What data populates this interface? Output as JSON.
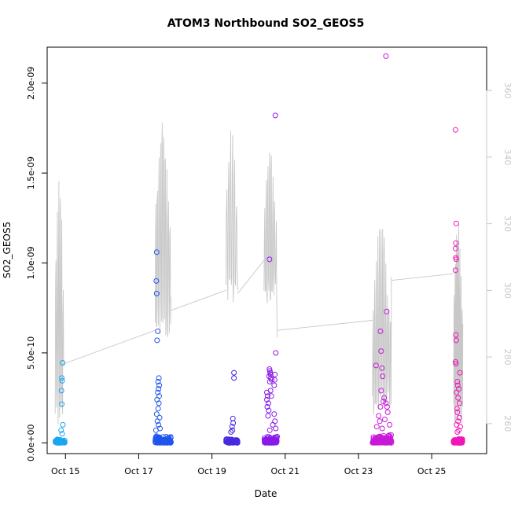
{
  "chart_data": {
    "type": "scatter",
    "title": "ATOM3 Northbound SO2_GEOS5",
    "xlabel": "Date",
    "ylabel": "SO2_GEOS5",
    "xlim": [
      14.5,
      26.5
    ],
    "ylim": [
      -6e-11,
      2.2e-09
    ],
    "y2lim": [
      251,
      373
    ],
    "grid": false,
    "x_ticks": [
      {
        "value": 15,
        "label": "Oct 15"
      },
      {
        "value": 17,
        "label": "Oct 17"
      },
      {
        "value": 19,
        "label": "Oct 19"
      },
      {
        "value": 21,
        "label": "Oct 21"
      },
      {
        "value": 23,
        "label": "Oct 23"
      },
      {
        "value": 25,
        "label": "Oct 25"
      }
    ],
    "y_ticks": [
      {
        "value": 0,
        "label": "0.0e+00"
      },
      {
        "value": 5e-10,
        "label": "5.0e-10"
      },
      {
        "value": 1e-09,
        "label": "1.0e-09"
      },
      {
        "value": 1.5e-09,
        "label": "1.5e-09"
      },
      {
        "value": 2e-09,
        "label": "2.0e-09"
      }
    ],
    "y2_ticks": [
      {
        "value": 260,
        "label": "260"
      },
      {
        "value": 280,
        "label": "280"
      },
      {
        "value": 300,
        "label": "300"
      },
      {
        "value": 320,
        "label": "320"
      },
      {
        "value": 340,
        "label": "340"
      },
      {
        "value": 360,
        "label": "360"
      }
    ],
    "colors": {
      "secondary_line": "#c8c8c8",
      "frame": "#000000",
      "right_axis": "#c8c8c8"
    },
    "flights": [
      {
        "color": "#1aa6f0",
        "x_start": 14.72,
        "x_end": 14.98,
        "base_max": 2.5e-11,
        "base_n": 70,
        "outliers": [
          [
            14.92,
            4.45e-10
          ],
          [
            14.9,
            3.6e-10
          ],
          [
            14.91,
            3.45e-10
          ],
          [
            14.89,
            2.9e-10
          ],
          [
            14.9,
            2.15e-10
          ],
          [
            14.93,
            1e-10
          ],
          [
            14.88,
            7e-11
          ],
          [
            14.91,
            5e-11
          ]
        ]
      },
      {
        "color": "#2255ee",
        "x_start": 17.45,
        "x_end": 17.88,
        "base_max": 4e-11,
        "base_n": 120,
        "outliers": [
          [
            17.49,
            1.06e-09
          ],
          [
            17.48,
            9e-10
          ],
          [
            17.49,
            8.3e-10
          ],
          [
            17.52,
            6.2e-10
          ],
          [
            17.5,
            5.7e-10
          ],
          [
            17.55,
            3.6e-10
          ],
          [
            17.53,
            3.4e-10
          ],
          [
            17.56,
            3.2e-10
          ],
          [
            17.54,
            3e-10
          ],
          [
            17.52,
            2.8e-10
          ],
          [
            17.56,
            2.6e-10
          ],
          [
            17.5,
            2.4e-10
          ],
          [
            17.55,
            2.2e-10
          ],
          [
            17.53,
            1.9e-10
          ],
          [
            17.49,
            1.6e-10
          ],
          [
            17.57,
            1.4e-10
          ],
          [
            17.51,
            1.2e-10
          ],
          [
            17.54,
            1e-10
          ],
          [
            17.58,
            8e-11
          ],
          [
            17.47,
            7e-11
          ]
        ]
      },
      {
        "color": "#4a2be0",
        "x_start": 19.38,
        "x_end": 19.7,
        "base_max": 2.5e-11,
        "base_n": 80,
        "outliers": [
          [
            19.6,
            3.9e-10
          ],
          [
            19.6,
            3.6e-10
          ],
          [
            19.57,
            1.35e-10
          ],
          [
            19.58,
            1.1e-10
          ],
          [
            19.55,
            9e-11
          ],
          [
            19.56,
            7e-11
          ],
          [
            19.52,
            6e-11
          ]
        ]
      },
      {
        "color": "#8a1ae8",
        "x_start": 20.42,
        "x_end": 20.78,
        "base_max": 4e-11,
        "base_n": 110,
        "outliers": [
          [
            20.73,
            1.82e-09
          ],
          [
            20.57,
            1.02e-09
          ],
          [
            20.74,
            5e-10
          ],
          [
            20.57,
            4.1e-10
          ],
          [
            20.58,
            4e-10
          ],
          [
            20.59,
            3.9e-10
          ],
          [
            20.6,
            3.8e-10
          ],
          [
            20.56,
            3.7e-10
          ],
          [
            20.61,
            3.6e-10
          ],
          [
            20.63,
            3.5e-10
          ],
          [
            20.58,
            3.4e-10
          ],
          [
            20.72,
            3.8e-10
          ],
          [
            20.71,
            3.5e-10
          ],
          [
            20.7,
            3.2e-10
          ],
          [
            20.5,
            2.8e-10
          ],
          [
            20.52,
            2.6e-10
          ],
          [
            20.5,
            2.4e-10
          ],
          [
            20.54,
            2.2e-10
          ],
          [
            20.51,
            2e-10
          ],
          [
            20.6,
            2.9e-10
          ],
          [
            20.62,
            2.6e-10
          ],
          [
            20.55,
            1.8e-10
          ],
          [
            20.7,
            1.6e-10
          ],
          [
            20.72,
            1.2e-10
          ],
          [
            20.53,
            1.5e-10
          ],
          [
            20.66,
            1e-10
          ],
          [
            20.74,
            8e-11
          ],
          [
            20.58,
            7e-11
          ]
        ]
      },
      {
        "color": "#c81ad8",
        "x_start": 23.38,
        "x_end": 23.9,
        "base_max": 5e-11,
        "base_n": 140,
        "outliers": [
          [
            23.75,
            2.15e-09
          ],
          [
            23.77,
            7.3e-10
          ],
          [
            23.6,
            6.2e-10
          ],
          [
            23.62,
            5.1e-10
          ],
          [
            23.48,
            4.3e-10
          ],
          [
            23.64,
            4.15e-10
          ],
          [
            23.66,
            3.7e-10
          ],
          [
            23.62,
            2.9e-10
          ],
          [
            23.7,
            2.5e-10
          ],
          [
            23.68,
            2.3e-10
          ],
          [
            23.75,
            2.2e-10
          ],
          [
            23.6,
            2e-10
          ],
          [
            23.78,
            2e-10
          ],
          [
            23.8,
            1.7e-10
          ],
          [
            23.55,
            1.5e-10
          ],
          [
            23.72,
            1.3e-10
          ],
          [
            23.58,
            1.2e-10
          ],
          [
            23.85,
            1e-10
          ],
          [
            23.5,
            9e-11
          ],
          [
            23.65,
            8e-11
          ]
        ]
      },
      {
        "color": "#f018b8",
        "x_start": 25.6,
        "x_end": 25.85,
        "base_max": 3e-11,
        "base_n": 110,
        "outliers": [
          [
            25.65,
            1.74e-09
          ],
          [
            25.67,
            1.22e-09
          ],
          [
            25.66,
            1.11e-09
          ],
          [
            25.65,
            1.08e-09
          ],
          [
            25.66,
            1.03e-09
          ],
          [
            25.67,
            1.02e-09
          ],
          [
            25.65,
            9.6e-10
          ],
          [
            25.66,
            6e-10
          ],
          [
            25.67,
            5.7e-10
          ],
          [
            25.65,
            4.5e-10
          ],
          [
            25.66,
            4.4e-10
          ],
          [
            25.77,
            3.9e-10
          ],
          [
            25.7,
            3.4e-10
          ],
          [
            25.71,
            3.2e-10
          ],
          [
            25.74,
            3e-10
          ],
          [
            25.68,
            2.8e-10
          ],
          [
            25.72,
            2.5e-10
          ],
          [
            25.76,
            2.2e-10
          ],
          [
            25.69,
            1.9e-10
          ],
          [
            25.7,
            1.7e-10
          ],
          [
            25.75,
            1.4e-10
          ],
          [
            25.72,
            1.2e-10
          ],
          [
            25.68,
            1e-10
          ],
          [
            25.78,
            9e-11
          ],
          [
            25.74,
            7e-11
          ],
          [
            25.7,
            6e-11
          ]
        ]
      }
    ],
    "secondary_series": {
      "axis": "right",
      "color": "#c8c8c8",
      "segments": [
        {
          "x_start": 14.72,
          "x_end": 14.96,
          "low": 258,
          "high": 339,
          "n": 6,
          "end": 278
        },
        {
          "x_start": 17.45,
          "x_end": 17.88,
          "low": 285,
          "high": 351,
          "n": 10,
          "end": 298
        },
        {
          "x_start": 19.38,
          "x_end": 19.7,
          "low": 296,
          "high": 352,
          "n": 6,
          "end": 300
        },
        {
          "x_start": 20.42,
          "x_end": 20.78,
          "low": 294,
          "high": 343,
          "n": 8,
          "end": 286
        },
        {
          "x_start": 23.38,
          "x_end": 23.9,
          "low": 262,
          "high": 321,
          "n": 12,
          "end": 304
        },
        {
          "x_start": 25.6,
          "x_end": 25.85,
          "low": 259,
          "high": 324,
          "n": 8,
          "end": 290
        }
      ],
      "transit": [
        [
          14.96,
          278
        ],
        [
          17.45,
          288
        ],
        [
          17.88,
          294
        ],
        [
          19.38,
          300
        ],
        [
          19.7,
          299
        ],
        [
          20.42,
          309
        ],
        [
          20.78,
          288
        ],
        [
          23.38,
          291
        ],
        [
          23.9,
          303
        ],
        [
          25.6,
          305
        ]
      ]
    }
  }
}
